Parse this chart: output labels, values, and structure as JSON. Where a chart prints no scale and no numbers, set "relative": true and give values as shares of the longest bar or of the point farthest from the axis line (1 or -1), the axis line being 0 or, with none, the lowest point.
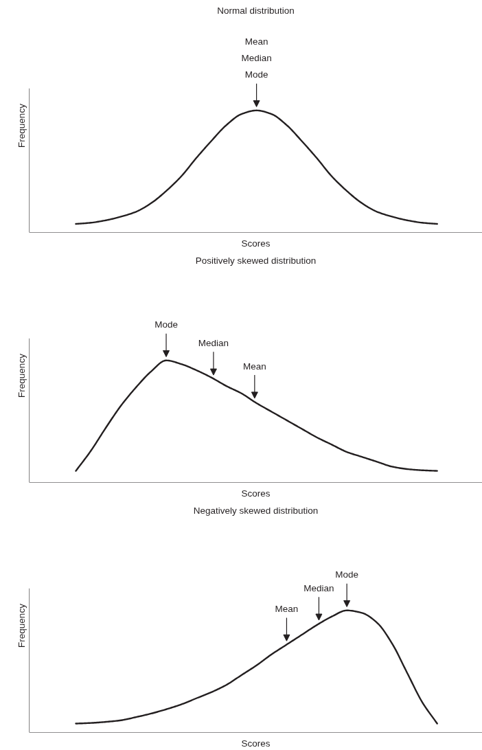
{
  "chart_data": [
    {
      "type": "line",
      "title": "Normal distribution",
      "xlabel": "Scores",
      "ylabel": "Frequency",
      "relative": true,
      "color": "#231f20",
      "categories": [
        null,
        null,
        null,
        null,
        null,
        null,
        null,
        null,
        null,
        null,
        null,
        null,
        null,
        null,
        null,
        null,
        null,
        null,
        null,
        null,
        null,
        null,
        null,
        null,
        null
      ],
      "values": [
        0.07,
        0.08,
        0.1,
        0.13,
        0.17,
        0.24,
        0.34,
        0.46,
        0.61,
        0.75,
        0.88,
        0.97,
        1.0,
        0.97,
        0.88,
        0.75,
        0.61,
        0.46,
        0.34,
        0.24,
        0.17,
        0.13,
        0.1,
        0.08,
        0.07
      ],
      "annotations": [
        "Mean",
        "Median",
        {
          "text": "Mode",
          "y": 1.0
        }
      ]
    },
    {
      "type": "line",
      "title": "Positively skewed distribution",
      "xlabel": "Scores",
      "ylabel": "Frequency",
      "relative": true,
      "color": "#231f20",
      "categories": [
        null,
        null,
        null,
        null,
        null,
        null,
        null,
        null,
        null,
        null,
        null,
        null,
        null,
        null,
        null,
        null,
        null,
        null,
        null,
        null,
        null,
        null,
        null,
        null,
        null
      ],
      "values": [
        0.095,
        0.26,
        0.45,
        0.63,
        0.78,
        0.91,
        1.0,
        0.97,
        0.92,
        0.86,
        0.79,
        0.73,
        0.65,
        0.58,
        0.51,
        0.44,
        0.37,
        0.31,
        0.25,
        0.21,
        0.17,
        0.13,
        0.11,
        0.1,
        0.095
      ],
      "annotations": [
        {
          "text": "Mode",
          "y": 1.0
        },
        {
          "text": "Median",
          "y": 0.85
        },
        {
          "text": "Mean",
          "y": 0.66
        }
      ]
    },
    {
      "type": "line",
      "title": "Negatively skewed distribution",
      "xlabel": "Scores",
      "ylabel": "Frequency",
      "relative": true,
      "color": "#231f20",
      "categories": [
        null,
        null,
        null,
        null,
        null,
        null,
        null,
        null,
        null,
        null,
        null,
        null,
        null,
        null,
        null,
        null,
        null,
        null,
        null,
        null,
        null,
        null,
        null,
        null,
        null
      ],
      "values": [
        0.073,
        0.078,
        0.087,
        0.1,
        0.126,
        0.155,
        0.19,
        0.23,
        0.28,
        0.33,
        0.39,
        0.47,
        0.55,
        0.64,
        0.72,
        0.8,
        0.88,
        0.95,
        1.0,
        0.98,
        0.9,
        0.73,
        0.49,
        0.25,
        0.073
      ],
      "annotations": [
        {
          "text": "Mean",
          "y": 0.72
        },
        {
          "text": "Median",
          "y": 0.89
        },
        {
          "text": "Mode",
          "y": 1.0
        }
      ]
    }
  ]
}
